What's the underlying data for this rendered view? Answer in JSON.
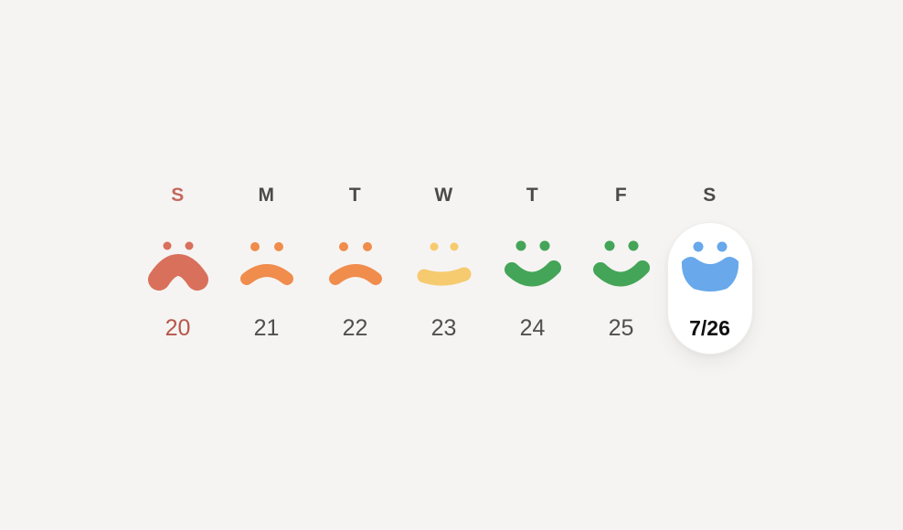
{
  "app": {
    "background_color": "#f5f4f2",
    "selected_pill_color": "#ffffff",
    "weekday_text_color": "#4a4a4a",
    "date_text_color": "#4f4f4f"
  },
  "week_strip": {
    "days": [
      {
        "letter": "S",
        "date": "20",
        "mood": "sad",
        "face_color": "#d9705b",
        "letter_color": "#c4695e",
        "date_color": "#b5574b",
        "selected": false
      },
      {
        "letter": "M",
        "date": "21",
        "mood": "frown",
        "face_color": "#f08c4c",
        "letter_color": "#4a4a4a",
        "date_color": "#4f4f4f",
        "selected": false
      },
      {
        "letter": "T",
        "date": "22",
        "mood": "frown",
        "face_color": "#f08c4c",
        "letter_color": "#4a4a4a",
        "date_color": "#4f4f4f",
        "selected": false
      },
      {
        "letter": "W",
        "date": "23",
        "mood": "neutral",
        "face_color": "#f6ca6e",
        "letter_color": "#4a4a4a",
        "date_color": "#4f4f4f",
        "selected": false
      },
      {
        "letter": "T",
        "date": "24",
        "mood": "smile",
        "face_color": "#44a458",
        "letter_color": "#4a4a4a",
        "date_color": "#4f4f4f",
        "selected": false
      },
      {
        "letter": "F",
        "date": "25",
        "mood": "smile",
        "face_color": "#44a458",
        "letter_color": "#4a4a4a",
        "date_color": "#4f4f4f",
        "selected": false
      },
      {
        "letter": "S",
        "date": "7/26",
        "mood": "big-smile",
        "face_color": "#68a8eb",
        "letter_color": "#4a4a4a",
        "date_color": "#101010",
        "selected": true
      }
    ]
  }
}
